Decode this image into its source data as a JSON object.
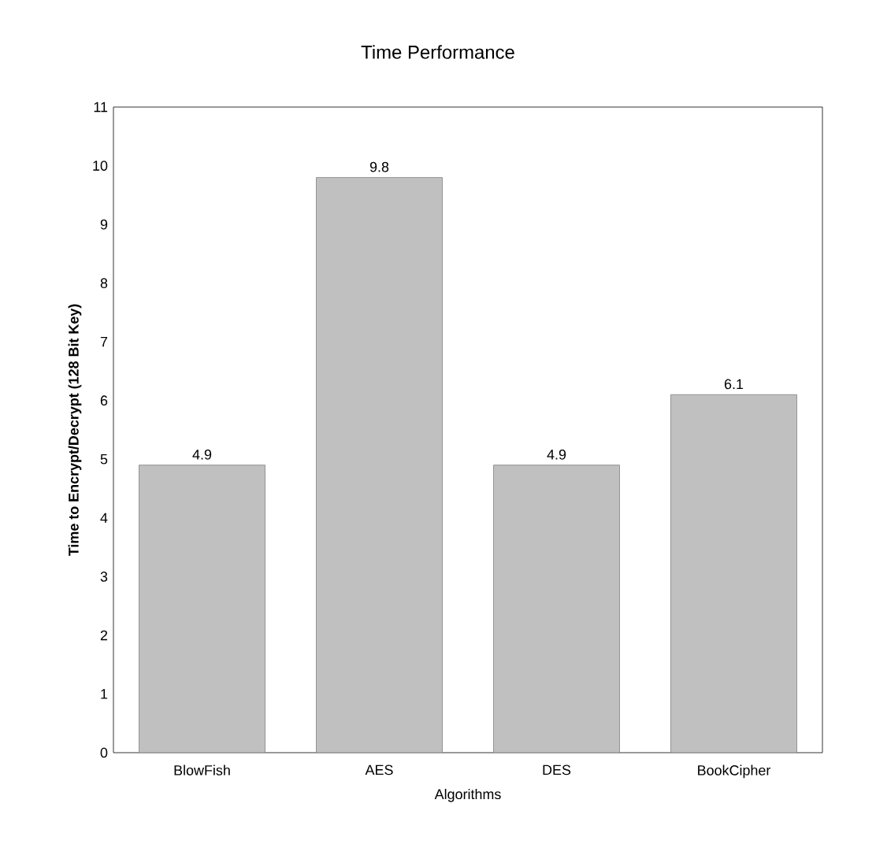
{
  "chart_data": {
    "type": "bar",
    "title": "Time Performance",
    "xlabel": "Algorithms",
    "ylabel": "Time to Encrypt/Decrypt (128 Bit Key)",
    "categories": [
      "BlowFish",
      "AES",
      "DES",
      "BookCipher"
    ],
    "values": [
      4.9,
      9.8,
      4.9,
      6.1
    ],
    "color": "#c0c0c0",
    "ylim": [
      0,
      11
    ],
    "yticks": [
      0,
      1,
      2,
      3,
      4,
      5,
      6,
      7,
      8,
      9,
      10,
      11
    ],
    "data_labels": true
  }
}
